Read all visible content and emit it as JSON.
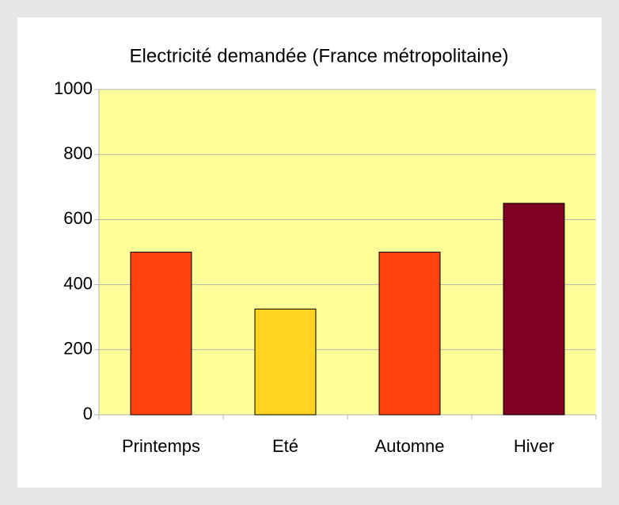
{
  "chart_data": {
    "type": "bar",
    "title": "Electricité demandée (France métropolitaine)",
    "categories": [
      "Printemps",
      "Eté",
      "Automne",
      "Hiver"
    ],
    "values": [
      500,
      325,
      500,
      650
    ],
    "colors": [
      "#ff420e",
      "#ffd320",
      "#ff420e",
      "#7e0021"
    ],
    "ylim": [
      0,
      1000
    ],
    "yticks": [
      0,
      200,
      400,
      600,
      800,
      1000
    ],
    "grid": true
  }
}
